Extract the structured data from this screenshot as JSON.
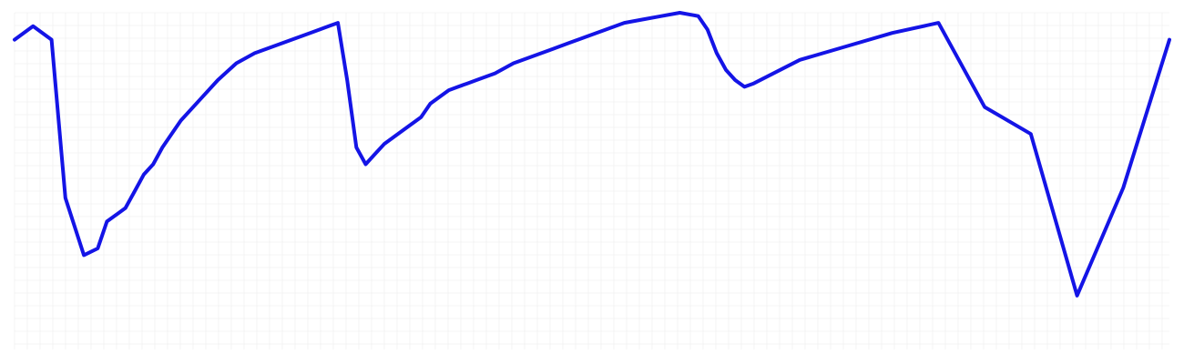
{
  "chart_data": {
    "type": "line",
    "title": "",
    "xlabel": "",
    "ylabel": "",
    "grid": true,
    "legend": "none",
    "xlim": [
      0,
      250
    ],
    "ylim": [
      0,
      1
    ],
    "series": [
      {
        "color": "#1414e6",
        "x": [
          0,
          4,
          8,
          11,
          15,
          18,
          20,
          22,
          24,
          26,
          28,
          30,
          32,
          34,
          36,
          40,
          44,
          48,
          52,
          56,
          60,
          64,
          66,
          68,
          70,
          72,
          74,
          76,
          78,
          80,
          84,
          88,
          90,
          92,
          94,
          96,
          98,
          100,
          104,
          108,
          112,
          116,
          120,
          124,
          128,
          132,
          136,
          140,
          144,
          148,
          150,
          152,
          154,
          156,
          158,
          160,
          170,
          180,
          190,
          200,
          210,
          220,
          230,
          240,
          250
        ],
        "values": [
          0.92,
          0.96,
          0.92,
          0.45,
          0.28,
          0.3,
          0.38,
          0.4,
          0.42,
          0.47,
          0.52,
          0.55,
          0.6,
          0.64,
          0.68,
          0.74,
          0.8,
          0.85,
          0.88,
          0.9,
          0.92,
          0.94,
          0.95,
          0.96,
          0.97,
          0.8,
          0.6,
          0.55,
          0.58,
          0.61,
          0.65,
          0.69,
          0.73,
          0.75,
          0.77,
          0.78,
          0.79,
          0.8,
          0.82,
          0.85,
          0.87,
          0.89,
          0.91,
          0.93,
          0.95,
          0.97,
          0.98,
          0.99,
          1.0,
          0.99,
          0.95,
          0.88,
          0.83,
          0.8,
          0.78,
          0.79,
          0.86,
          0.9,
          0.94,
          0.97,
          0.72,
          0.64,
          0.16,
          0.48,
          0.92
        ]
      }
    ]
  }
}
